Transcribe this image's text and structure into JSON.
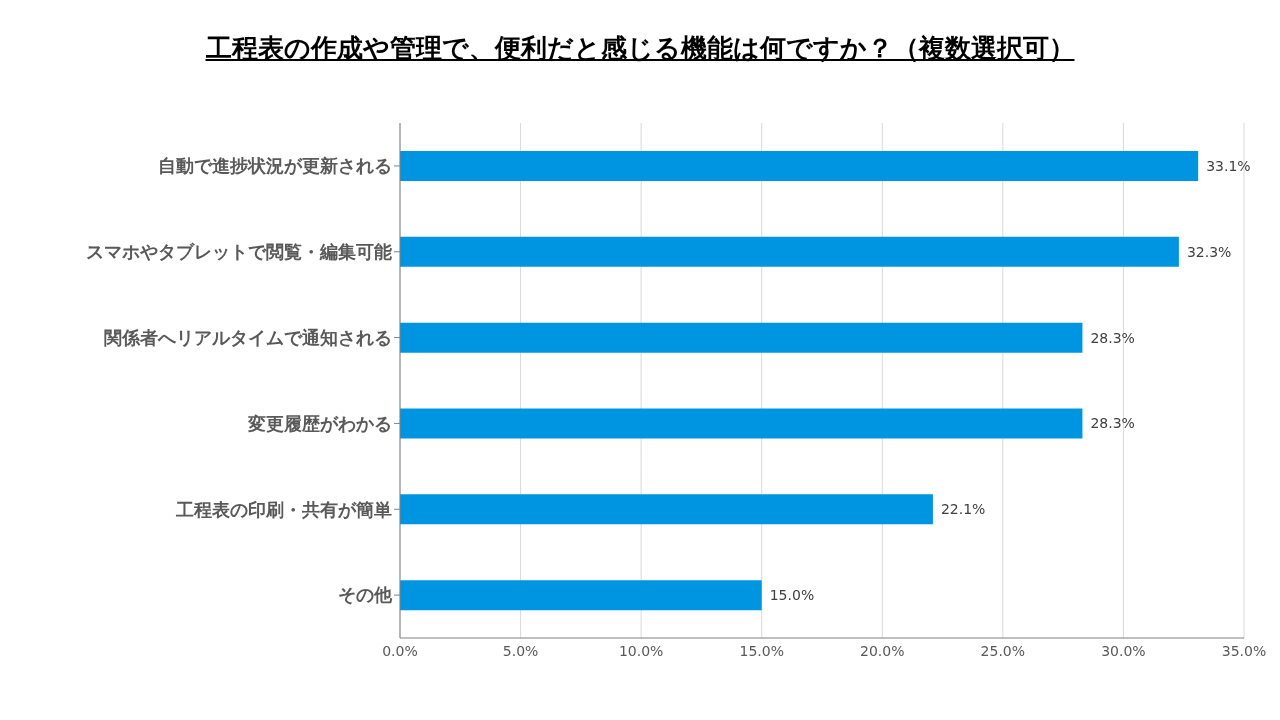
{
  "chart_data": {
    "type": "bar",
    "orientation": "horizontal",
    "title": "工程表の作成や管理で、便利だと感じる機能は何ですか？（複数選択可）",
    "categories": [
      "自動で進捗状況が更新される",
      "スマホやタブレットで閲覧・編集可能",
      "関係者へリアルタイムで通知される",
      "変更履歴がわかる",
      "工程表の印刷・共有が簡単",
      "その他"
    ],
    "values": [
      33.1,
      32.3,
      28.3,
      28.3,
      22.1,
      15.0
    ],
    "value_labels": [
      "33.1%",
      "32.3%",
      "28.3%",
      "28.3%",
      "22.1%",
      "15.0%"
    ],
    "color": "#0095e0",
    "xlim": [
      0,
      35
    ],
    "xticks": [
      {
        "value": 0,
        "label": "0.0%"
      },
      {
        "value": 5,
        "label": "5.0%"
      },
      {
        "value": 10,
        "label": "10.0%"
      },
      {
        "value": 15,
        "label": "15.0%"
      },
      {
        "value": 20,
        "label": "20.0%"
      },
      {
        "value": 25,
        "label": "25.0%"
      },
      {
        "value": 30,
        "label": "30.0%"
      },
      {
        "value": 35,
        "label": "35.0%"
      }
    ],
    "grid": "x"
  }
}
